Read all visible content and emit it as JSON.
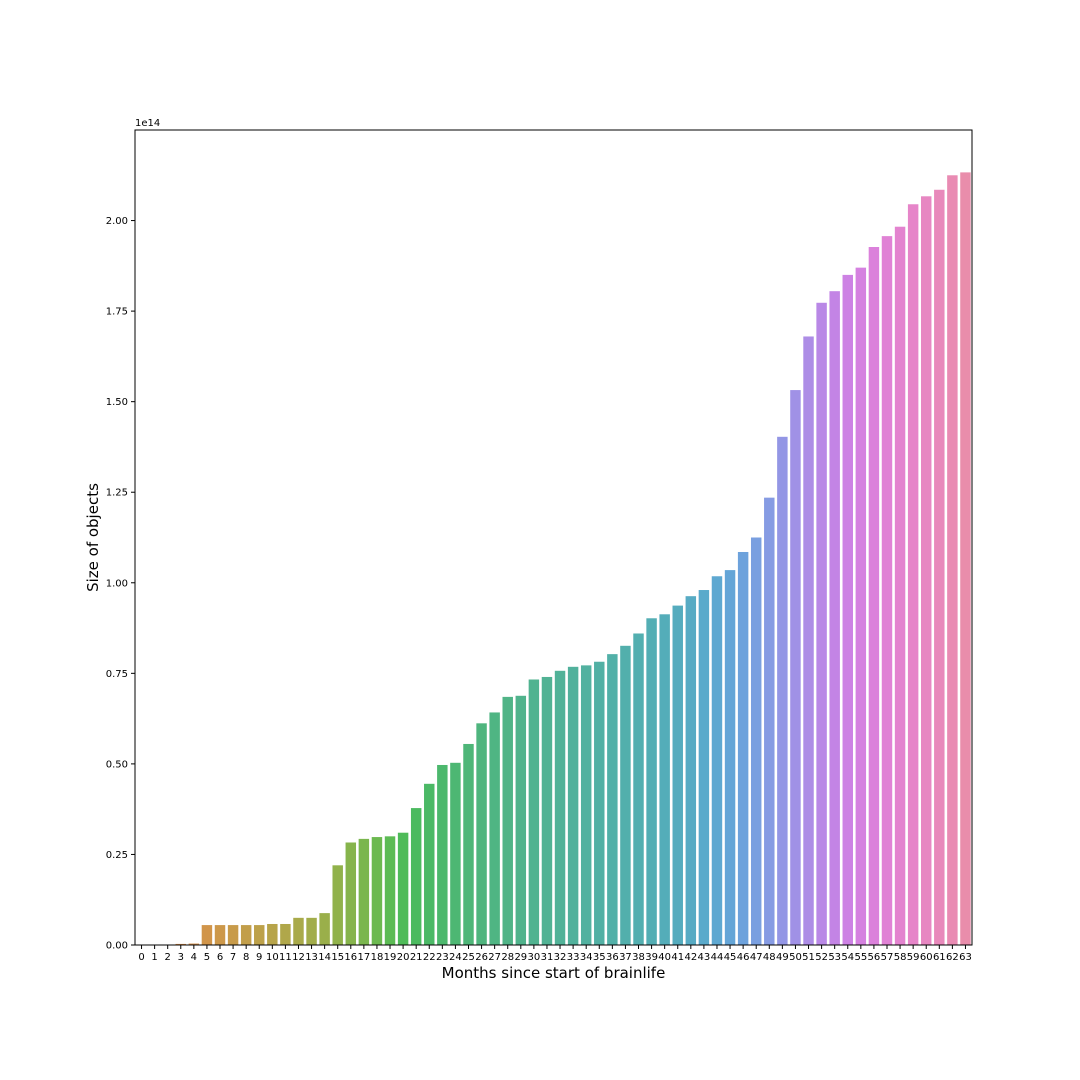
{
  "chart_data": {
    "type": "bar",
    "title": "",
    "xlabel": "Months since start of brainlife",
    "ylabel": "Size of objects",
    "y_offset_label": "1e14",
    "y_scale": 100000000000000.0,
    "ylim": [
      0,
      2.25
    ],
    "yticks": [
      "0.00",
      "0.25",
      "0.50",
      "0.75",
      "1.00",
      "1.25",
      "1.50",
      "1.75",
      "2.00"
    ],
    "grid": false,
    "legend": "none",
    "categories": [
      "0",
      "1",
      "2",
      "3",
      "4",
      "5",
      "6",
      "7",
      "8",
      "9",
      "10",
      "11",
      "12",
      "13",
      "14",
      "15",
      "16",
      "17",
      "18",
      "19",
      "20",
      "21",
      "22",
      "23",
      "24",
      "25",
      "26",
      "27",
      "28",
      "29",
      "30",
      "31",
      "32",
      "33",
      "34",
      "35",
      "36",
      "37",
      "38",
      "39",
      "40",
      "41",
      "42",
      "43",
      "44",
      "45",
      "46",
      "47",
      "48",
      "49",
      "50",
      "51",
      "52",
      "53",
      "54",
      "55",
      "56",
      "57",
      "58",
      "59",
      "60",
      "61",
      "62",
      "63"
    ],
    "values": [
      0.0,
      0.0,
      0.0,
      0.003,
      0.004,
      0.055,
      0.055,
      0.055,
      0.055,
      0.055,
      0.058,
      0.058,
      0.075,
      0.075,
      0.088,
      0.22,
      0.283,
      0.293,
      0.298,
      0.3,
      0.31,
      0.378,
      0.445,
      0.497,
      0.503,
      0.555,
      0.612,
      0.642,
      0.685,
      0.688,
      0.733,
      0.74,
      0.757,
      0.768,
      0.772,
      0.782,
      0.803,
      0.826,
      0.86,
      0.902,
      0.913,
      0.937,
      0.963,
      0.98,
      1.018,
      1.035,
      1.085,
      1.125,
      1.235,
      1.403,
      1.532,
      1.68,
      1.773,
      1.805,
      1.85,
      1.87,
      1.927,
      1.957,
      1.983,
      2.045,
      2.067,
      2.085,
      2.125,
      2.133
    ],
    "colors": [
      "#e8828c",
      "#e8845e",
      "#e18a4f",
      "#db8e4a",
      "#d6914a",
      "#d1954a",
      "#cd984a",
      "#c89b4a",
      "#c29e4a",
      "#bda14a",
      "#b7a44a",
      "#b0a74a",
      "#a9aa4a",
      "#a2ad4a",
      "#9aaf4a",
      "#91b24b",
      "#86b44c",
      "#7ab64e",
      "#6cb950",
      "#5cbb54",
      "#4fbb59",
      "#4bba5f",
      "#4bb966",
      "#4cb86d",
      "#4db773",
      "#4eb678",
      "#4fb57e",
      "#4fb583",
      "#50b487",
      "#50b38c",
      "#50b390",
      "#51b294",
      "#51b298",
      "#51b19c",
      "#52b1a0",
      "#52b0a4",
      "#52b0a8",
      "#52afac",
      "#53afb0",
      "#53aeb4",
      "#54adb9",
      "#55acbe",
      "#57abc4",
      "#5aaacb",
      "#5ea8d1",
      "#64a5d7",
      "#6da2dc",
      "#799fe0",
      "#869be3",
      "#9396e5",
      "#a091e6",
      "#ad8de6",
      "#b988e6",
      "#c384e5",
      "#cd82e4",
      "#d581e0",
      "#db81db",
      "#e082d5",
      "#e383cf",
      "#e685c9",
      "#e787c2",
      "#e889bb",
      "#e98bb3",
      "#e98dab"
    ]
  }
}
